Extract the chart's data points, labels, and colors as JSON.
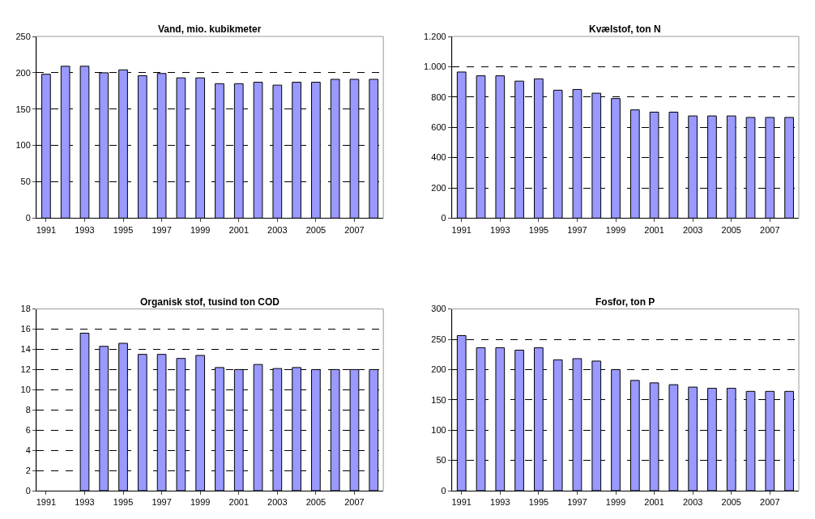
{
  "chart_data": [
    {
      "type": "bar",
      "title": "Vand, mio. kubikmeter",
      "categories": [
        "1991",
        null,
        "1993",
        null,
        "1995",
        null,
        "1997",
        null,
        "1999",
        null,
        "2001",
        null,
        "2003",
        null,
        "2005",
        null,
        "2007",
        null
      ],
      "values": [
        198,
        209,
        209,
        200,
        204,
        196,
        199,
        193,
        193,
        185,
        185,
        187,
        183,
        187,
        187,
        191,
        191,
        191
      ],
      "color": "#9999ff",
      "ylim": [
        0,
        250
      ],
      "yticks": [
        0,
        50,
        100,
        150,
        200,
        250
      ],
      "grid": "y"
    },
    {
      "type": "bar",
      "title": "Kvælstof, ton N",
      "categories": [
        "1991",
        null,
        "1993",
        null,
        "1995",
        null,
        "1997",
        null,
        "1999",
        null,
        "2001",
        null,
        "2003",
        null,
        "2005",
        null,
        "2007",
        null
      ],
      "values": [
        965,
        940,
        940,
        905,
        920,
        845,
        850,
        825,
        790,
        715,
        700,
        700,
        675,
        675,
        675,
        665,
        665,
        665
      ],
      "color": "#9999ff",
      "ylim": [
        0,
        1200
      ],
      "yticks": [
        0,
        200,
        400,
        600,
        800,
        {
          "value": 1000,
          "label": "1.000"
        },
        {
          "value": 1200,
          "label": "1.200"
        }
      ],
      "grid": "y"
    },
    {
      "type": "bar",
      "title": "Organisk stof, tusind ton COD",
      "categories": [
        "1991",
        null,
        "1993",
        null,
        "1995",
        null,
        "1997",
        null,
        "1999",
        null,
        "2001",
        null,
        "2003",
        null,
        "2005",
        null,
        "2007",
        null
      ],
      "values": [
        null,
        null,
        15.6,
        14.3,
        14.6,
        13.5,
        13.5,
        13.1,
        13.4,
        12.2,
        12.0,
        12.5,
        12.1,
        12.2,
        12.0,
        12.0,
        12.0,
        12.0
      ],
      "color": "#9999ff",
      "ylim": [
        0,
        18
      ],
      "yticks": [
        0,
        2,
        4,
        6,
        8,
        10,
        12,
        14,
        16,
        18
      ],
      "grid": "y"
    },
    {
      "type": "bar",
      "title": "Fosfor, ton P",
      "categories": [
        "1991",
        null,
        "1993",
        null,
        "1995",
        null,
        "1997",
        null,
        "1999",
        null,
        "2001",
        null,
        "2003",
        null,
        "2005",
        null,
        "2007",
        null
      ],
      "values": [
        256,
        236,
        236,
        232,
        236,
        216,
        218,
        214,
        200,
        182,
        178,
        175,
        171,
        169,
        169,
        164,
        164,
        164
      ],
      "color": "#9999ff",
      "ylim": [
        0,
        300
      ],
      "yticks": [
        0,
        50,
        100,
        150,
        200,
        250,
        300
      ],
      "grid": "y"
    }
  ]
}
